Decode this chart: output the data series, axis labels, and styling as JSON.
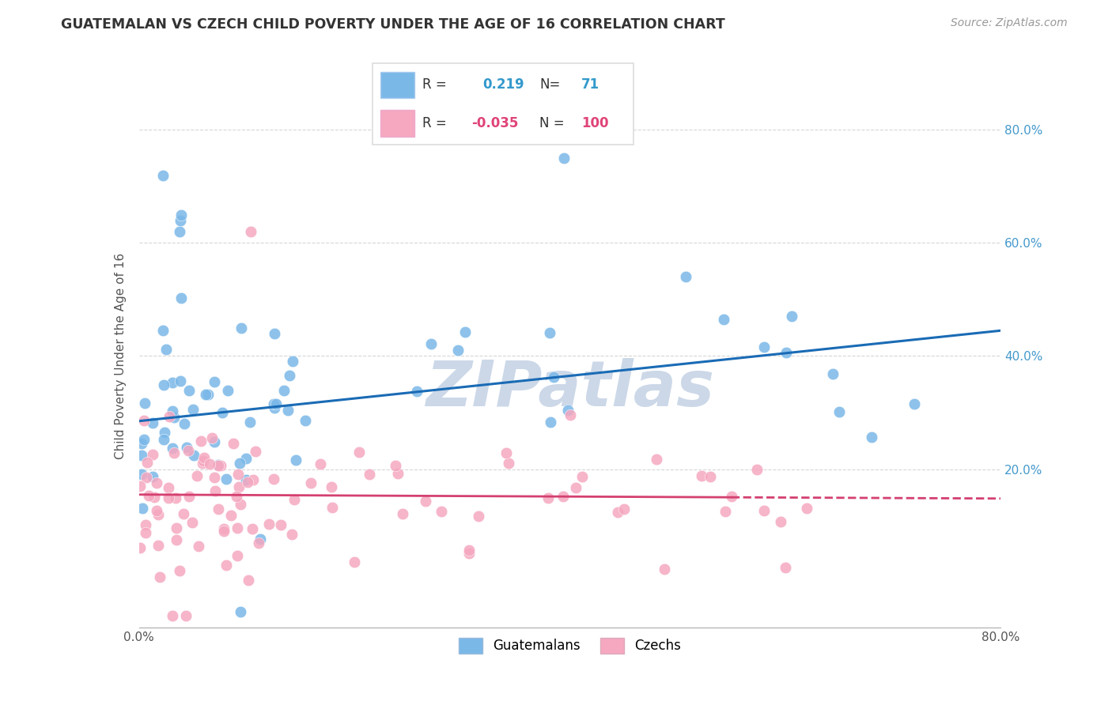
{
  "title": "GUATEMALAN VS CZECH CHILD POVERTY UNDER THE AGE OF 16 CORRELATION CHART",
  "source": "Source: ZipAtlas.com",
  "ylabel": "Child Poverty Under the Age of 16",
  "guatemalan_R": 0.219,
  "guatemalan_N": 71,
  "czech_R": -0.035,
  "czech_N": 100,
  "guatemalan_color": "#7ab8e8",
  "czech_color": "#f5a8c0",
  "guatemalan_line_color": "#1a6bb5",
  "czech_line_color": "#d44070",
  "legend_label_guatemalan": "Guatemalans",
  "legend_label_czech": "Czechs",
  "xmin": 0.0,
  "xmax": 0.8,
  "ymin": -0.08,
  "ymax": 0.88,
  "background_color": "#ffffff",
  "grid_color": "#cccccc",
  "watermark_color": "#ccd8e8"
}
